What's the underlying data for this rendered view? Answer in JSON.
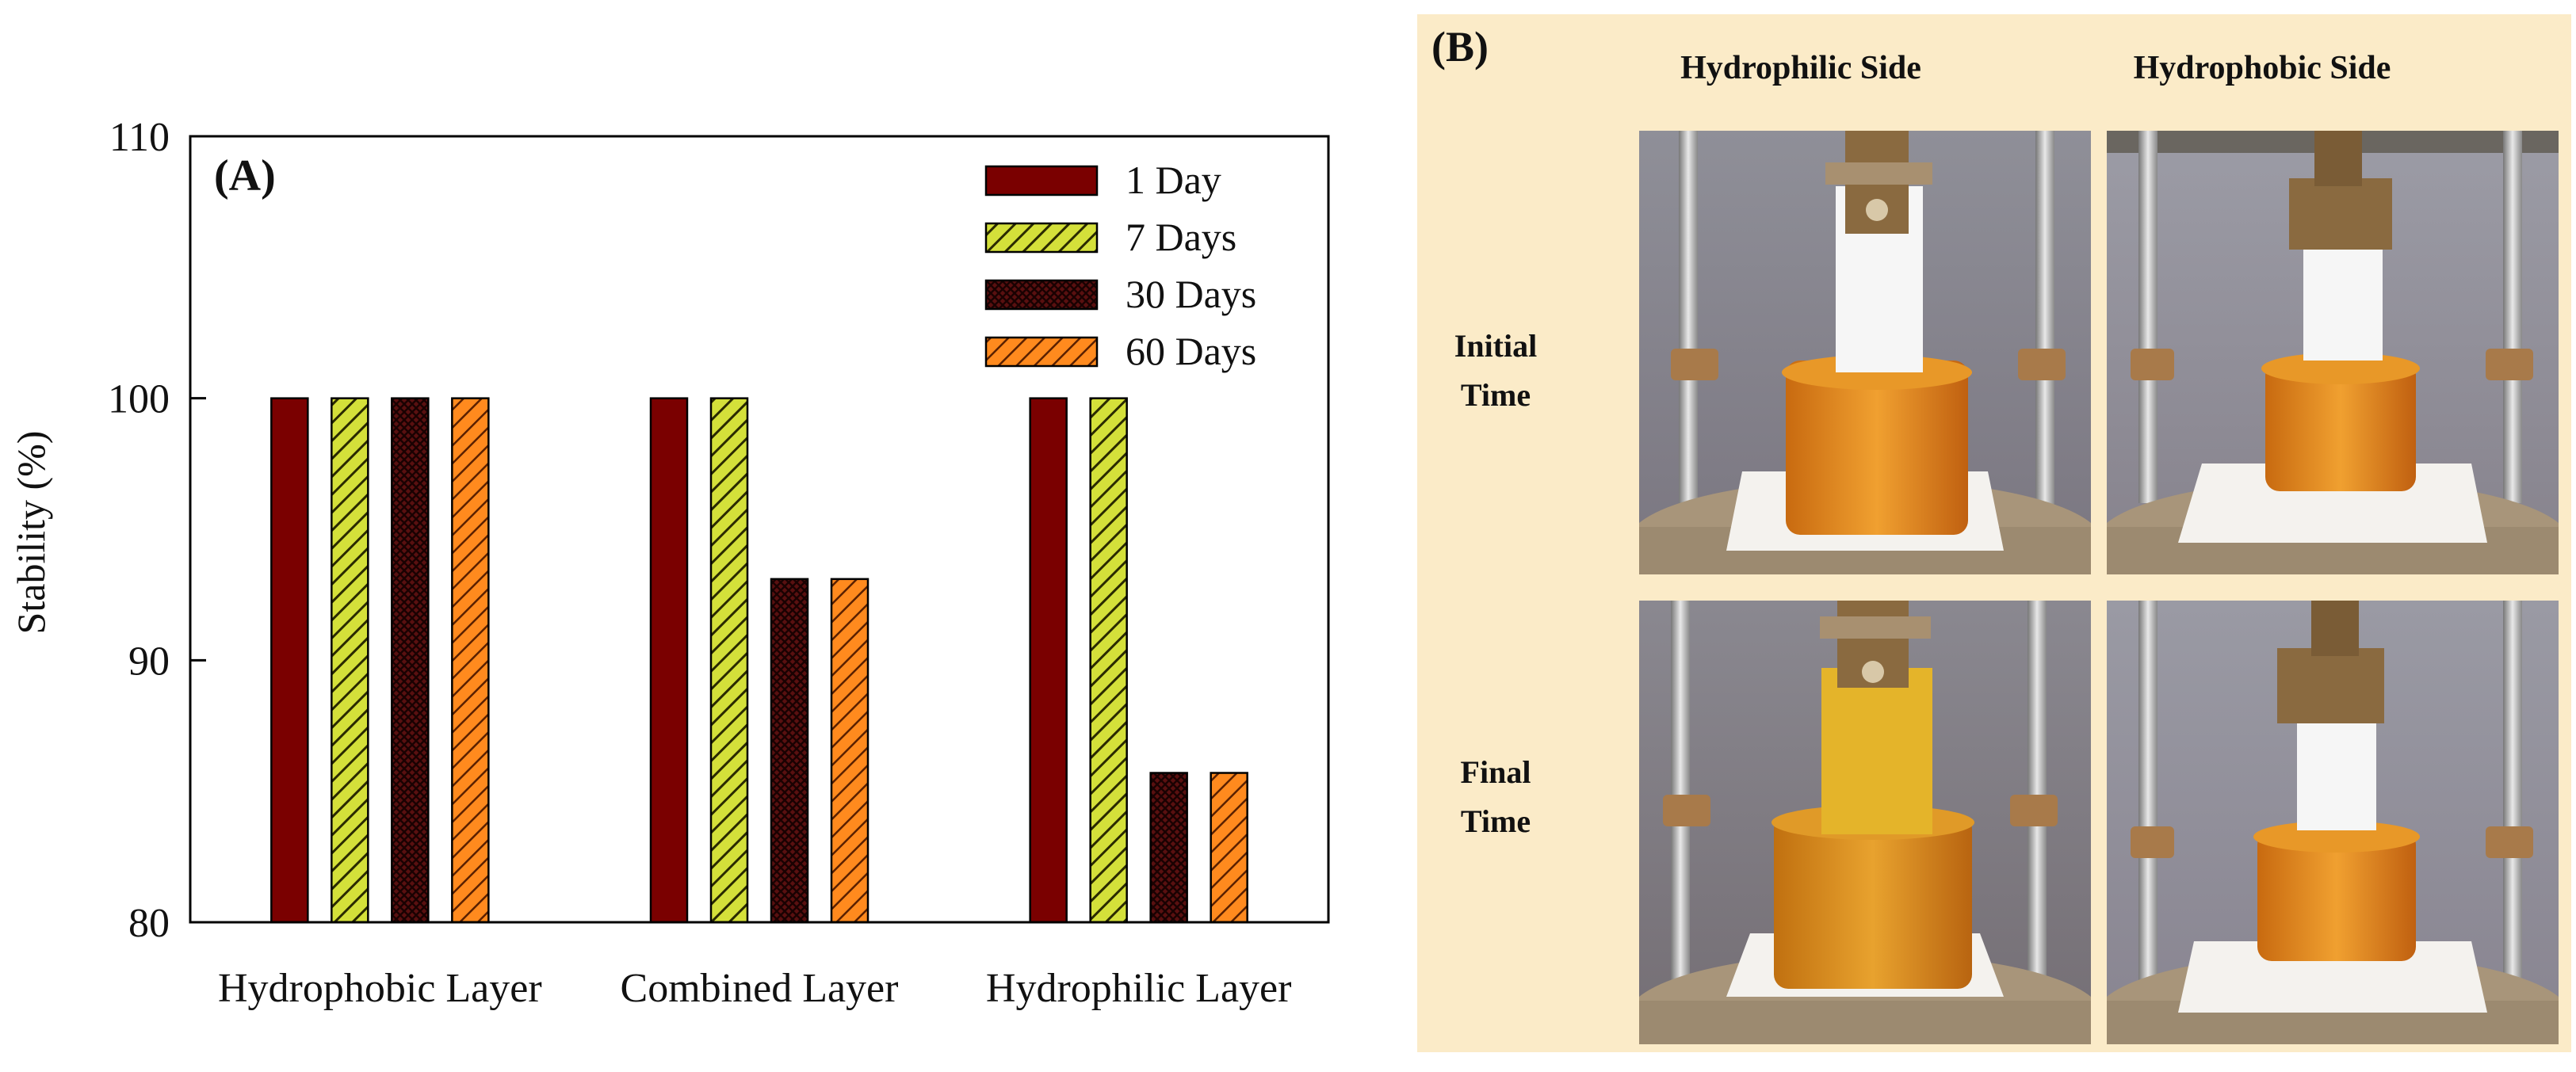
{
  "chart_data": {
    "type": "bar",
    "panel_label": "(A)",
    "ylabel": "Stability (%)",
    "xlabel": "",
    "ylim": [
      80,
      110
    ],
    "yticks": [
      80,
      90,
      100,
      110
    ],
    "categories": [
      "Hydrophobic Layer",
      "Combined Layer",
      "Hydrophilic Layer"
    ],
    "series": [
      {
        "name": "1 Day",
        "values": [
          100,
          100,
          100
        ],
        "color": "#7a0000",
        "pattern": "solid"
      },
      {
        "name": "7 Days",
        "values": [
          100,
          100,
          100
        ],
        "color": "#b5c820",
        "pattern": "diagonal-lines"
      },
      {
        "name": "30 Days",
        "values": [
          100,
          93.1,
          85.7
        ],
        "color": "#3a0808",
        "pattern": "crosshatch"
      },
      {
        "name": "60 Days",
        "values": [
          100,
          93.1,
          85.7
        ],
        "color": "#f07818",
        "pattern": "diagonal-lines"
      }
    ],
    "legend_position": "top-right",
    "grid": false
  },
  "panel_b": {
    "label": "(B)",
    "columns": [
      "Hydrophilic Side",
      "Hydrophobic Side"
    ],
    "rows": [
      "Initial Time",
      "Final Time"
    ],
    "background": "#fbebc8"
  },
  "icons": [
    "photo-hydrophilic-initial",
    "photo-hydrophobic-initial",
    "photo-hydrophilic-final",
    "photo-hydrophobic-final"
  ]
}
